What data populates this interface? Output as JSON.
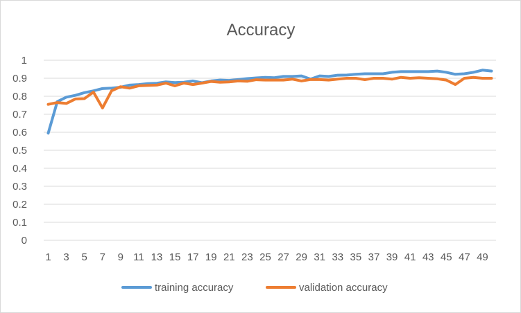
{
  "chart_data": {
    "type": "line",
    "title": "Accuracy",
    "xlabel": "",
    "ylabel": "",
    "ylim": [
      0,
      1
    ],
    "yticks": [
      "0",
      "0.1",
      "0.2",
      "0.3",
      "0.4",
      "0.5",
      "0.6",
      "0.7",
      "0.8",
      "0.9",
      "1"
    ],
    "x": [
      1,
      2,
      3,
      4,
      5,
      6,
      7,
      8,
      9,
      10,
      11,
      12,
      13,
      14,
      15,
      16,
      17,
      18,
      19,
      20,
      21,
      22,
      23,
      24,
      25,
      26,
      27,
      28,
      29,
      30,
      31,
      32,
      33,
      34,
      35,
      36,
      37,
      38,
      39,
      40,
      41,
      42,
      43,
      44,
      45,
      46,
      47,
      48,
      49,
      50
    ],
    "xtick_labels": [
      "1",
      "3",
      "5",
      "7",
      "9",
      "11",
      "13",
      "15",
      "17",
      "19",
      "21",
      "23",
      "25",
      "27",
      "29",
      "31",
      "33",
      "35",
      "37",
      "39",
      "41",
      "43",
      "45",
      "47",
      "49"
    ],
    "grid": true,
    "legend_position": "bottom",
    "series": [
      {
        "name": "training accuracy",
        "color": "#5b9bd5",
        "values": [
          0.595,
          0.77,
          0.795,
          0.805,
          0.82,
          0.83,
          0.843,
          0.845,
          0.85,
          0.862,
          0.865,
          0.87,
          0.872,
          0.88,
          0.876,
          0.878,
          0.885,
          0.875,
          0.885,
          0.89,
          0.888,
          0.893,
          0.898,
          0.902,
          0.905,
          0.903,
          0.91,
          0.91,
          0.913,
          0.895,
          0.913,
          0.91,
          0.917,
          0.918,
          0.922,
          0.925,
          0.925,
          0.925,
          0.933,
          0.937,
          0.937,
          0.937,
          0.937,
          0.94,
          0.933,
          0.922,
          0.925,
          0.933,
          0.945,
          0.94
        ]
      },
      {
        "name": "validation accuracy",
        "color": "#ed7d31",
        "values": [
          0.755,
          0.765,
          0.76,
          0.785,
          0.787,
          0.823,
          0.735,
          0.83,
          0.853,
          0.845,
          0.858,
          0.86,
          0.862,
          0.873,
          0.858,
          0.873,
          0.865,
          0.873,
          0.882,
          0.878,
          0.88,
          0.885,
          0.883,
          0.892,
          0.89,
          0.89,
          0.89,
          0.895,
          0.885,
          0.893,
          0.893,
          0.89,
          0.895,
          0.9,
          0.9,
          0.892,
          0.9,
          0.9,
          0.895,
          0.905,
          0.9,
          0.903,
          0.9,
          0.897,
          0.89,
          0.865,
          0.9,
          0.905,
          0.9,
          0.9
        ]
      }
    ]
  }
}
